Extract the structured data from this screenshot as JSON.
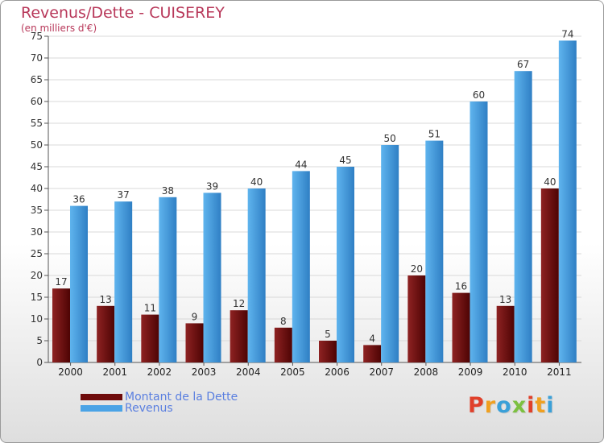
{
  "chart_data": {
    "type": "bar",
    "title": "Revenus/Dette - CUISEREY",
    "subtitle": "(en milliers d'€)",
    "categories": [
      "2000",
      "2001",
      "2002",
      "2003",
      "2004",
      "2005",
      "2006",
      "2007",
      "2008",
      "2009",
      "2010",
      "2011"
    ],
    "series": [
      {
        "name": "Montant de la Dette",
        "values": [
          17,
          13,
          11,
          9,
          12,
          8,
          5,
          4,
          20,
          16,
          13,
          40
        ],
        "color": "#7a1010"
      },
      {
        "name": "Revenus",
        "values": [
          36,
          37,
          38,
          39,
          40,
          44,
          45,
          50,
          51,
          60,
          67,
          74
        ],
        "color": "#4aa3e6"
      }
    ],
    "ylim": [
      0,
      75
    ],
    "yticks": [
      0,
      5,
      10,
      15,
      20,
      25,
      30,
      35,
      40,
      45,
      50,
      55,
      60,
      65,
      70,
      75
    ],
    "grid": true,
    "legend_position": "bottom-left"
  },
  "brand": {
    "text": "Proxiti",
    "colors": [
      "#e0402a",
      "#f0a020",
      "#3aa0d8",
      "#7cc040"
    ]
  }
}
